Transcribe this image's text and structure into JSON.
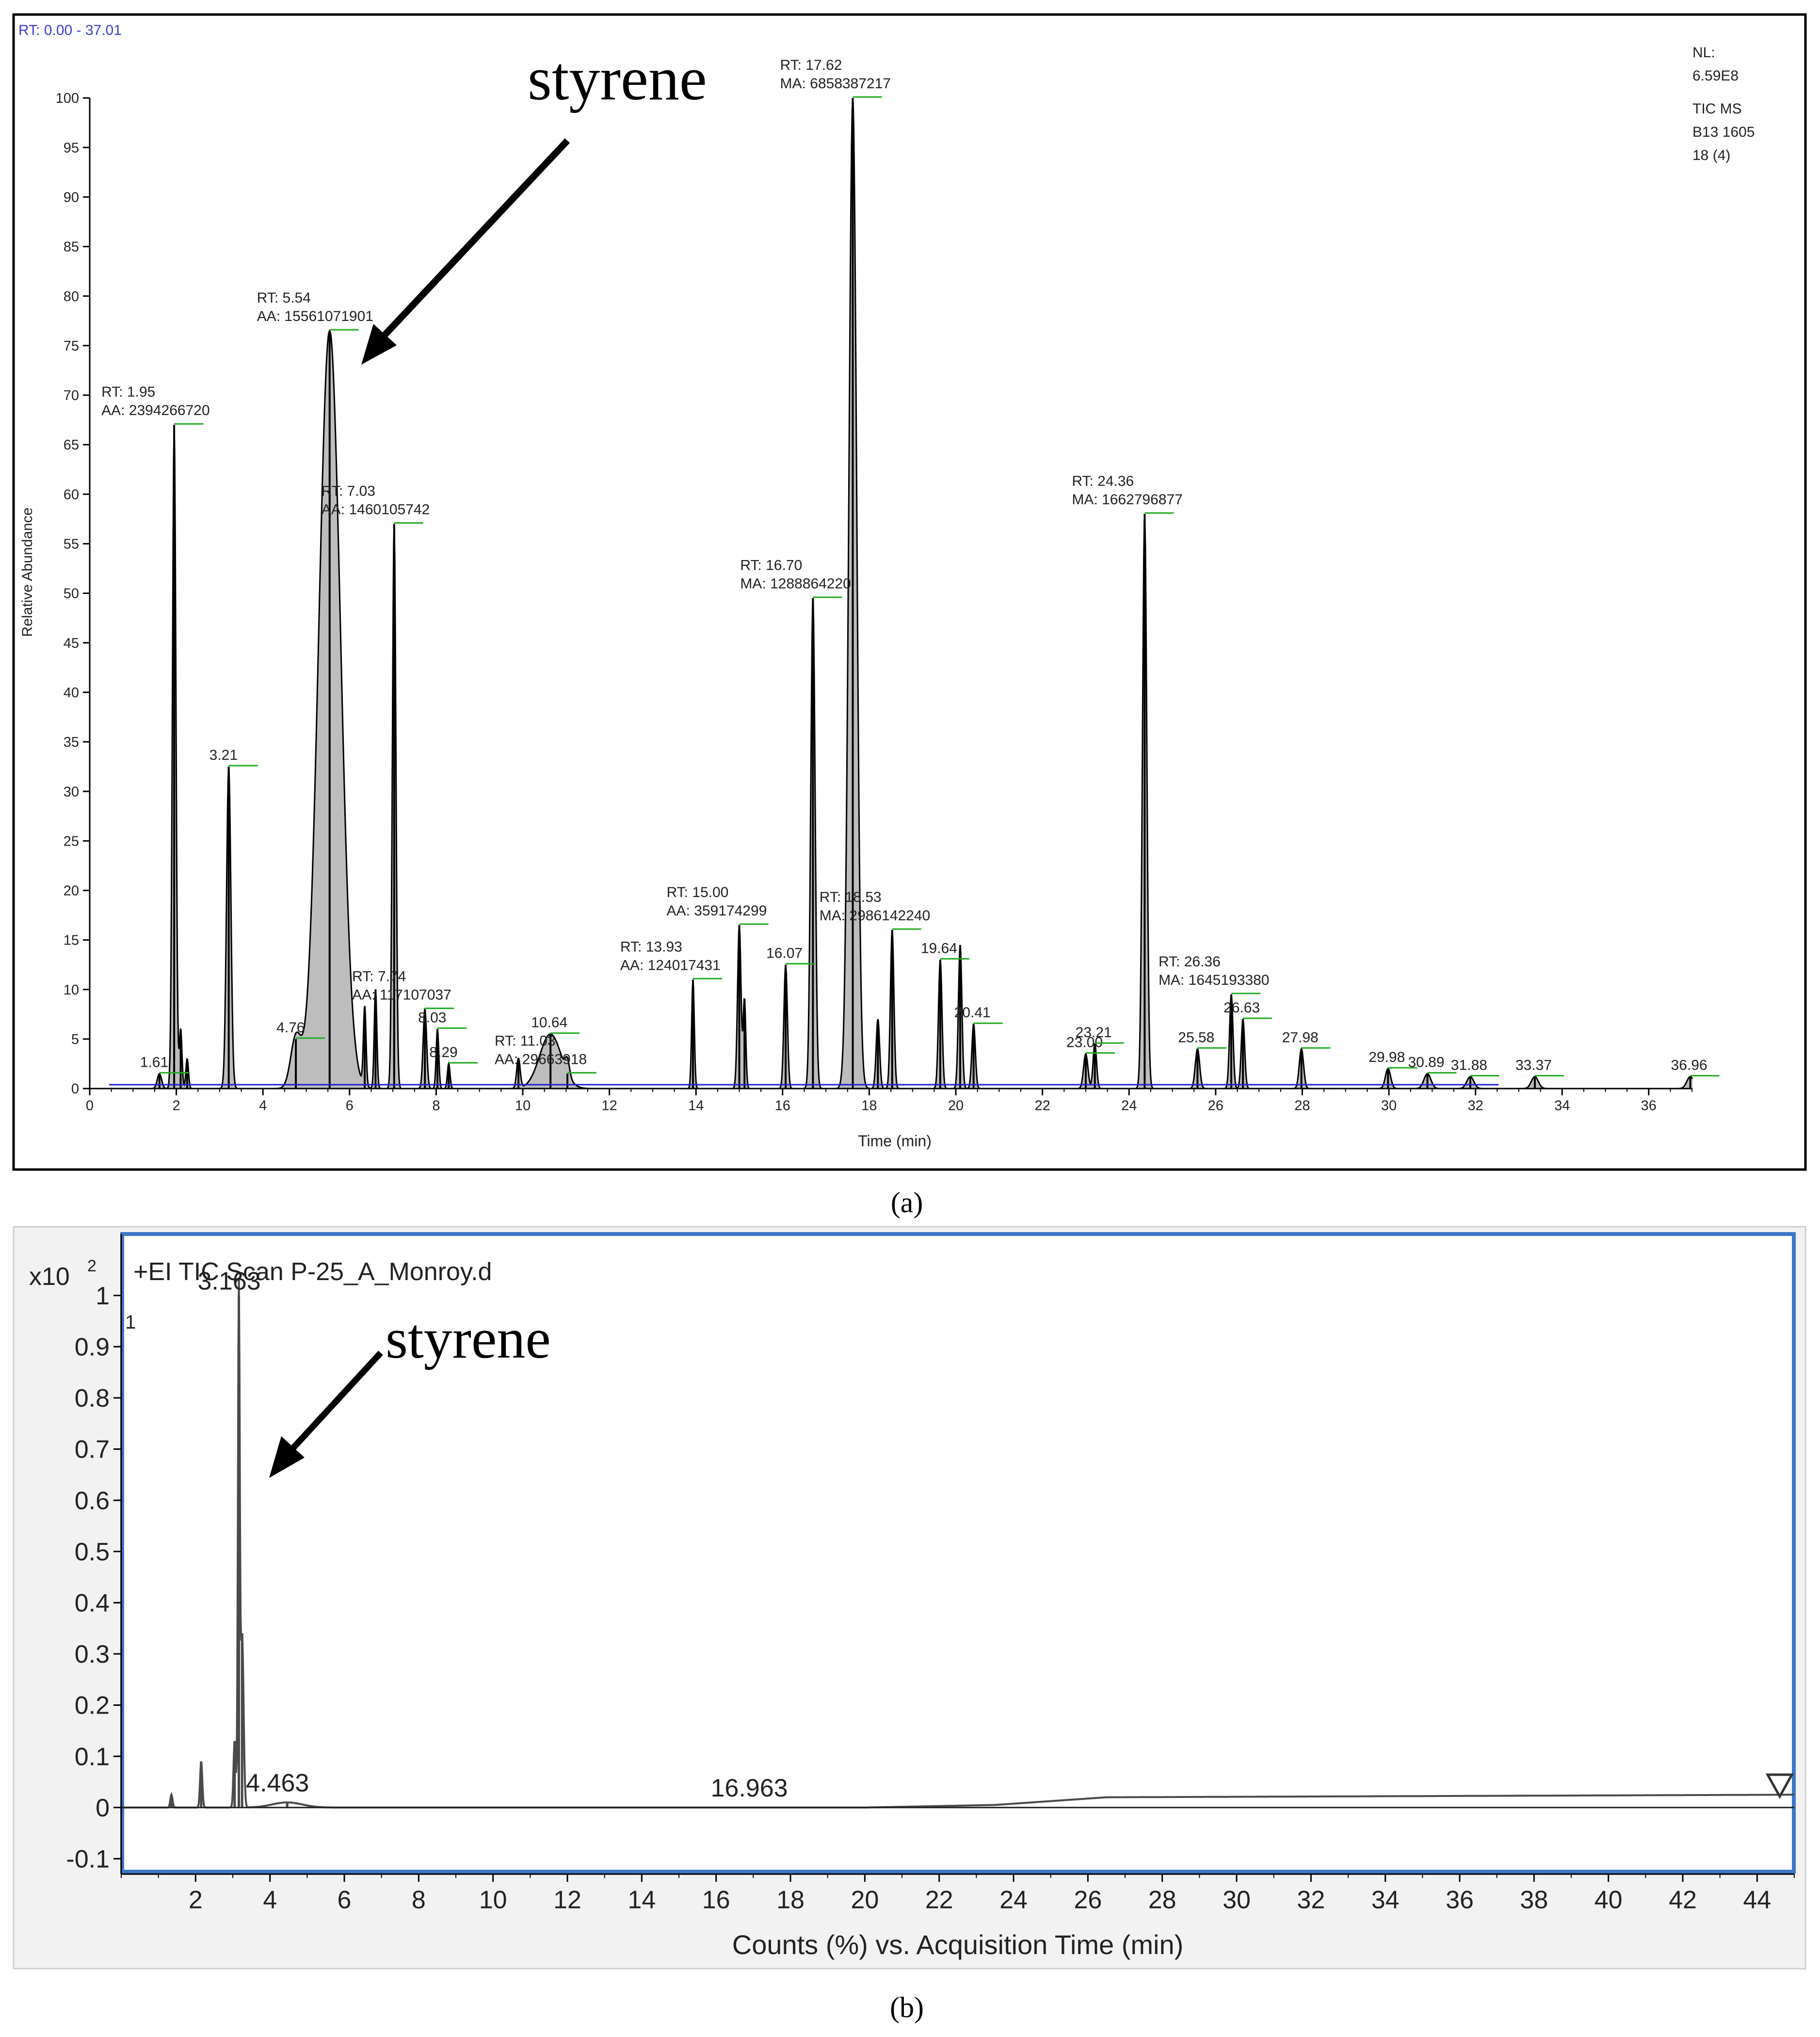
{
  "chart_data": [
    {
      "panel": "(a)",
      "type": "line",
      "header": "RT: 0.00 - 37.01",
      "info_lines": [
        "NL:",
        "6.59E8",
        "TIC MS",
        "B13 1605",
        "18 (4)"
      ],
      "xlabel": "Time (min)",
      "ylabel": "Relative Abundance",
      "xlim": [
        0,
        37.01
      ],
      "ylim": [
        0,
        100
      ],
      "xticks": [
        0,
        2,
        4,
        6,
        8,
        10,
        12,
        14,
        16,
        18,
        20,
        22,
        24,
        26,
        28,
        30,
        32,
        34,
        36
      ],
      "yticks": [
        0,
        5,
        10,
        15,
        20,
        25,
        30,
        35,
        40,
        45,
        50,
        55,
        60,
        65,
        70,
        75,
        80,
        85,
        90,
        95,
        100
      ],
      "callout": "styrene",
      "peaks": [
        {
          "rt": 1.61,
          "height": 1.5,
          "width": 0.05,
          "label": "1.61"
        },
        {
          "rt": 1.95,
          "height": 67,
          "width": 0.04,
          "label": "RT: 1.95",
          "label2": "AA: 2394266720"
        },
        {
          "rt": 2.1,
          "height": 6,
          "width": 0.03
        },
        {
          "rt": 2.25,
          "height": 3,
          "width": 0.03
        },
        {
          "rt": 3.21,
          "height": 32.5,
          "width": 0.05,
          "label": "3.21"
        },
        {
          "rt": 4.76,
          "height": 5,
          "width": 0.12,
          "label": "4.76"
        },
        {
          "rt": 5.54,
          "height": 76.5,
          "width": 0.25,
          "label": "RT: 5.54",
          "label2": "AA: 15561071901"
        },
        {
          "rt": 6.35,
          "height": 8,
          "width": 0.03
        },
        {
          "rt": 6.6,
          "height": 10,
          "width": 0.03
        },
        {
          "rt": 7.03,
          "height": 57,
          "width": 0.04,
          "label": "RT: 7.03",
          "label2": "AA: 1460105742"
        },
        {
          "rt": 7.74,
          "height": 8,
          "width": 0.04,
          "label": "RT: 7.74",
          "label2": "AA: 117107037"
        },
        {
          "rt": 8.03,
          "height": 6,
          "width": 0.03,
          "label": "8.03"
        },
        {
          "rt": 8.29,
          "height": 2.5,
          "width": 0.03,
          "label": "8.29"
        },
        {
          "rt": 9.9,
          "height": 3,
          "width": 0.04
        },
        {
          "rt": 10.64,
          "height": 5.5,
          "width": 0.25,
          "label": "10.64"
        },
        {
          "rt": 11.03,
          "height": 1.5,
          "width": 0.05,
          "label": "RT: 11.03",
          "label2": "AA: 29663918"
        },
        {
          "rt": 13.93,
          "height": 11,
          "width": 0.03,
          "label": "RT: 13.93",
          "label2": "AA: 124017431"
        },
        {
          "rt": 15.0,
          "height": 16.5,
          "width": 0.04,
          "label": "RT: 15.00",
          "label2": "AA: 359174299"
        },
        {
          "rt": 15.12,
          "height": 9,
          "width": 0.03
        },
        {
          "rt": 16.07,
          "height": 12.5,
          "width": 0.04,
          "label": "16.07"
        },
        {
          "rt": 16.7,
          "height": 49.5,
          "width": 0.05,
          "label": "RT: 16.70",
          "label2": "MA: 1288864220"
        },
        {
          "rt": 17.62,
          "height": 100,
          "width": 0.09,
          "label": "RT: 17.62",
          "label2": "MA: 6858387217"
        },
        {
          "rt": 18.2,
          "height": 7,
          "width": 0.04
        },
        {
          "rt": 18.53,
          "height": 16,
          "width": 0.04,
          "label": "RT: 18.53",
          "label2": "MA: 2986142240"
        },
        {
          "rt": 19.64,
          "height": 13,
          "width": 0.04,
          "label": "19.64"
        },
        {
          "rt": 20.1,
          "height": 14.5,
          "width": 0.04
        },
        {
          "rt": 20.41,
          "height": 6.5,
          "width": 0.04,
          "label": "20.41"
        },
        {
          "rt": 23.0,
          "height": 3.5,
          "width": 0.05,
          "label": "23.00"
        },
        {
          "rt": 23.21,
          "height": 4.5,
          "width": 0.04,
          "label": "23.21"
        },
        {
          "rt": 24.36,
          "height": 58,
          "width": 0.05,
          "label": "RT: 24.36",
          "label2": "MA: 1662796877"
        },
        {
          "rt": 25.58,
          "height": 4,
          "width": 0.05,
          "label": "25.58"
        },
        {
          "rt": 26.36,
          "height": 9.5,
          "width": 0.04,
          "label": "RT: 26.36",
          "label2": "MA: 1645193380"
        },
        {
          "rt": 26.63,
          "height": 7,
          "width": 0.04,
          "label": "26.63"
        },
        {
          "rt": 27.98,
          "height": 4,
          "width": 0.05,
          "label": "27.98"
        },
        {
          "rt": 29.98,
          "height": 2,
          "width": 0.06,
          "label": "29.98"
        },
        {
          "rt": 30.89,
          "height": 1.5,
          "width": 0.08,
          "label": "30.89"
        },
        {
          "rt": 31.88,
          "height": 1.2,
          "width": 0.08,
          "label": "31.88"
        },
        {
          "rt": 33.37,
          "height": 1.2,
          "width": 0.08,
          "label": "33.37"
        },
        {
          "rt": 36.96,
          "height": 1.2,
          "width": 0.08,
          "label": "36.96"
        }
      ]
    },
    {
      "panel": "(b)",
      "type": "line",
      "title": "+EI TIC Scan P-25_A_Monroy.d",
      "scale": "x10",
      "scale_exp": "2",
      "series_tag": "1",
      "xlabel": "Counts (%) vs. Acquisition Time (min)",
      "xlim": [
        0,
        45
      ],
      "ylim": [
        -0.13,
        1.12
      ],
      "xticks": [
        2,
        4,
        6,
        8,
        10,
        12,
        14,
        16,
        18,
        20,
        22,
        24,
        26,
        28,
        30,
        32,
        34,
        36,
        38,
        40,
        42,
        44
      ],
      "yticks": [
        -0.1,
        0,
        0.1,
        0.2,
        0.3,
        0.4,
        0.5,
        0.6,
        0.7,
        0.8,
        0.9,
        1
      ],
      "ytick_labels": [
        "-0.1",
        "0",
        "0.1",
        "0.2",
        "0.3",
        "0.4",
        "0.5",
        "0.6",
        "0.7",
        "0.8",
        "0.9",
        "1"
      ],
      "callout": "styrene",
      "peak_labels": [
        {
          "x": 3.163,
          "y": 1.0,
          "text": "3.163"
        },
        {
          "x": 4.463,
          "y": 0.02,
          "text": "4.463"
        },
        {
          "x": 16.963,
          "y": 0.01,
          "text": "16.963"
        }
      ],
      "peaks": [
        {
          "rt": 1.35,
          "height": 0.025,
          "width": 0.03
        },
        {
          "rt": 2.15,
          "height": 0.09,
          "width": 0.03
        },
        {
          "rt": 3.05,
          "height": 0.13,
          "width": 0.03
        },
        {
          "rt": 3.163,
          "height": 1.0,
          "width": 0.025
        },
        {
          "rt": 3.25,
          "height": 0.34,
          "width": 0.04
        },
        {
          "rt": 4.463,
          "height": 0.01,
          "width": 0.4
        }
      ],
      "baseline": [
        {
          "x": 0.0,
          "y": 0.0
        },
        {
          "x": 8.4,
          "y": 0.0
        },
        {
          "x": 20.0,
          "y": 0.0
        },
        {
          "x": 23.5,
          "y": 0.005
        },
        {
          "x": 26.5,
          "y": 0.02
        },
        {
          "x": 44.9,
          "y": 0.025
        }
      ]
    }
  ],
  "captions": {
    "a": "(a)",
    "b": "(b)"
  }
}
